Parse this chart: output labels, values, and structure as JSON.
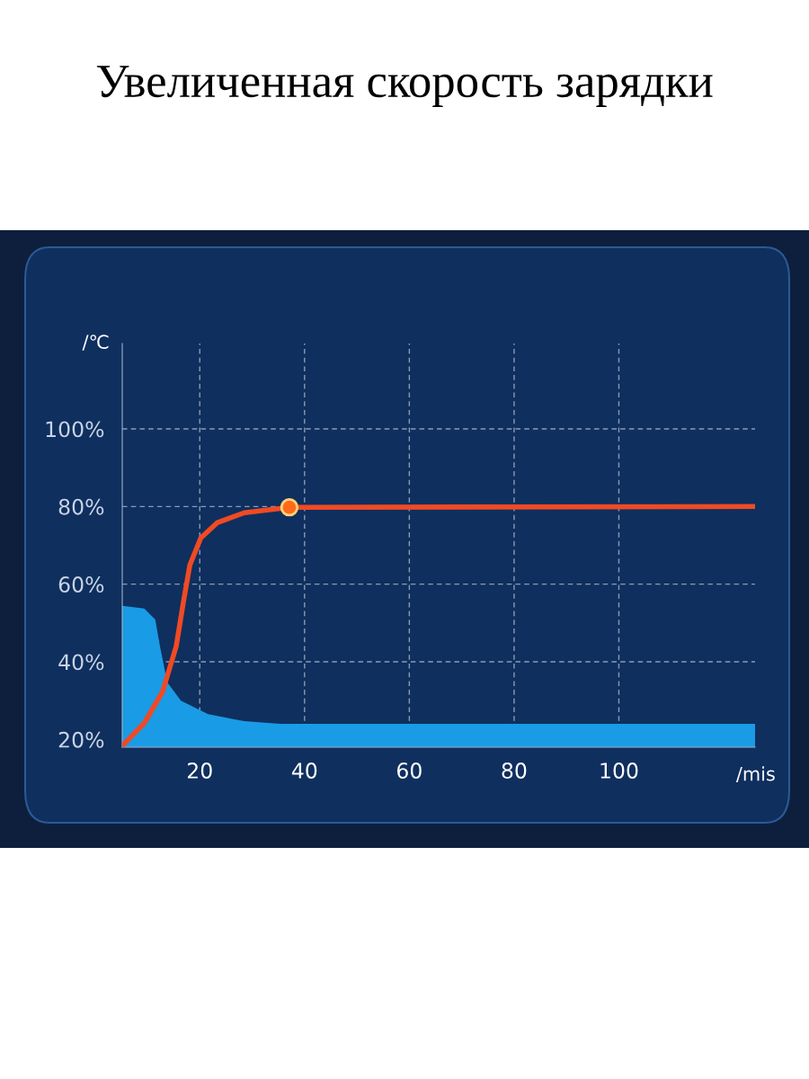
{
  "chart_data": {
    "type": "line",
    "title": "Увеличенная скорость зарядки",
    "xlabel": "/mis",
    "ylabel": "/℃",
    "xlim": [
      5.2,
      126
    ],
    "xticks": [
      20,
      40,
      60,
      80,
      100
    ],
    "ylim": [
      18,
      122
    ],
    "yticks": [
      {
        "value": 20,
        "label": "20%"
      },
      {
        "value": 40,
        "label": "40%"
      },
      {
        "value": 60,
        "label": "60%"
      },
      {
        "value": 80,
        "label": "80%"
      },
      {
        "value": 100,
        "label": "100%"
      }
    ],
    "grid": true,
    "line_style": "solid",
    "series": [
      {
        "type": "area",
        "color": "#1a9be6",
        "x": [
          5.2,
          9.4,
          11.5,
          12.4,
          13.8,
          16.4,
          21.6,
          28.5,
          35.4,
          126
        ],
        "values": [
          54.4,
          53.7,
          50.9,
          44,
          34.7,
          30,
          26.5,
          24.7,
          24,
          24
        ]
      },
      {
        "color": "#f04a24",
        "x": [
          5.3,
          9.4,
          12.9,
          15.5,
          16.9,
          18.1,
          20.2,
          23.3,
          28.5,
          37.1,
          126
        ],
        "values": [
          18.5,
          24.2,
          32.3,
          44,
          55.6,
          64.9,
          71.9,
          75.8,
          78.4,
          79.8,
          80
        ]
      },
      {
        "type": "scatter",
        "color": "#ff6a1a",
        "x": [
          37.1
        ],
        "values": [
          79.8
        ],
        "marker": "circle"
      }
    ]
  }
}
